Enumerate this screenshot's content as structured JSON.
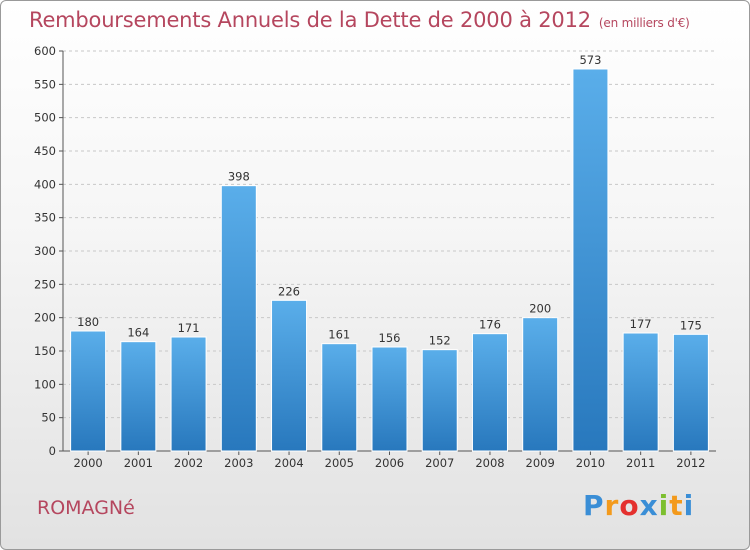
{
  "chart_data": {
    "type": "bar",
    "title": "Remboursements Annuels de la Dette de 2000 à 2012",
    "unit": "(en milliers d'€)",
    "categories": [
      "2000",
      "2001",
      "2002",
      "2003",
      "2004",
      "2005",
      "2006",
      "2007",
      "2008",
      "2009",
      "2010",
      "2011",
      "2012"
    ],
    "values": [
      180,
      164,
      171,
      398,
      226,
      161,
      156,
      152,
      176,
      200,
      573,
      177,
      175
    ],
    "yticks": [
      0,
      50,
      100,
      150,
      200,
      250,
      300,
      350,
      400,
      450,
      500,
      550,
      600
    ],
    "ylim": [
      0,
      600
    ],
    "xlabel": "",
    "ylabel": "",
    "bar_color": "#3d94db"
  },
  "commune": "ROMAGNé",
  "brand": {
    "letters": [
      "P",
      "r",
      "o",
      "x",
      "i",
      "t",
      "i"
    ],
    "colors": [
      "#3a8ed6",
      "#f39a1c",
      "#e4302e",
      "#3a8ed6",
      "#7cbf2f",
      "#f39a1c",
      "#3a8ed6"
    ]
  }
}
